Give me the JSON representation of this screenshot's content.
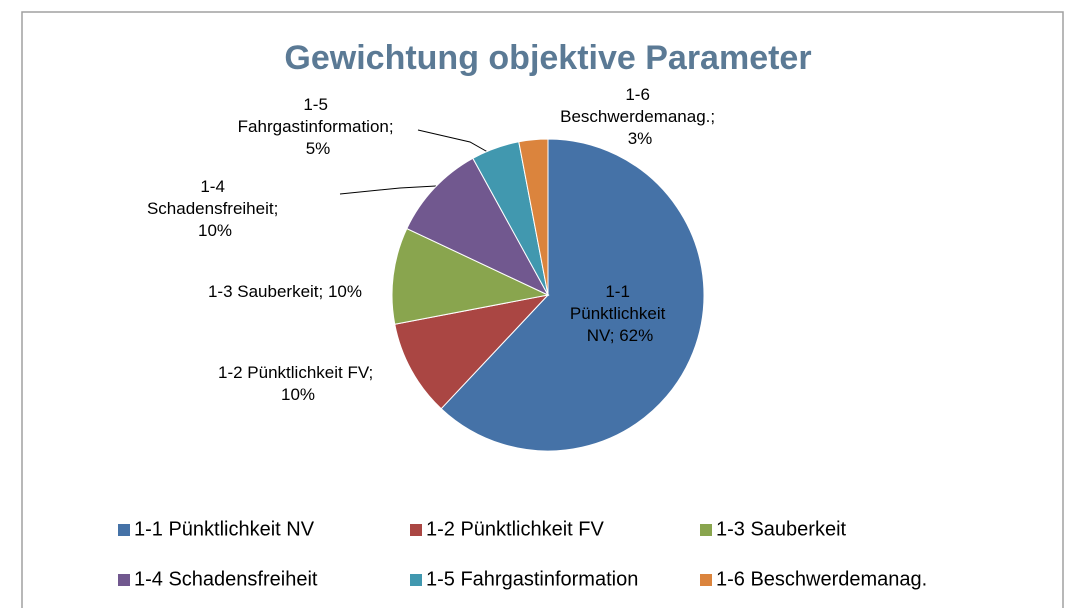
{
  "chart_data": {
    "type": "pie",
    "title": "Gewichtung objektive Parameter",
    "categories": [
      "1-1 Pünktlichkeit NV",
      "1-2 Pünktlichkeit FV",
      "1-3 Sauberkeit",
      "1-4 Schadensfreiheit",
      "1-5 Fahrgastinformation",
      "1-6 Beschwerdemanag."
    ],
    "values": [
      62,
      10,
      10,
      10,
      5,
      3
    ],
    "value_labels": [
      "1-1 Pünktlichkeit NV; 62%",
      "1-2 Pünktlichkeit FV; 10%",
      "1-3 Sauberkeit; 10%",
      "1-4 Schadensfreiheit; 10%",
      "1-5 Fahrgastinformation; 5%",
      "1-6 Beschwerdemanag.; 3%"
    ],
    "colors": [
      "#4572a7",
      "#aa4643",
      "#89a54e",
      "#71588f",
      "#4198af",
      "#db843d"
    ],
    "legend": "bottom"
  }
}
